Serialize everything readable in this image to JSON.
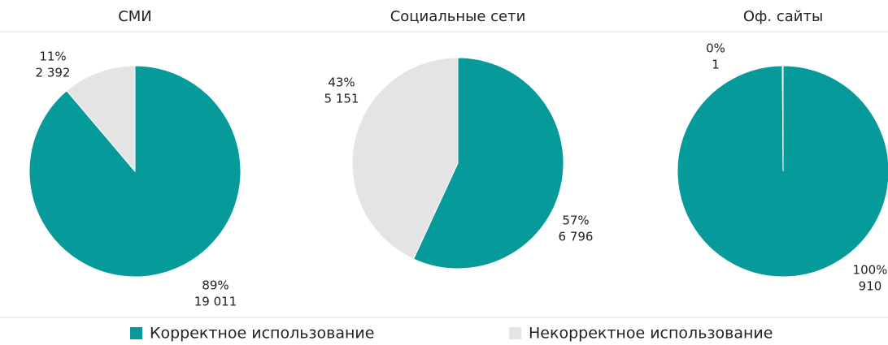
{
  "chart_data": [
    {
      "type": "pie",
      "title": "СМИ",
      "categories": [
        "Корректное использование",
        "Некорректное использование"
      ],
      "values": [
        19011,
        2392
      ],
      "value_labels": [
        "19 011",
        "2 392"
      ],
      "percents": [
        89,
        11
      ],
      "percent_labels": [
        "89%",
        "11%"
      ],
      "colors": [
        "#079a9a",
        "#e4e4e4"
      ]
    },
    {
      "type": "pie",
      "title": "Социальные сети",
      "categories": [
        "Корректное использование",
        "Некорректное использование"
      ],
      "values": [
        6796,
        5151
      ],
      "value_labels": [
        "6 796",
        "5 151"
      ],
      "percents": [
        57,
        43
      ],
      "percent_labels": [
        "57%",
        "43%"
      ],
      "colors": [
        "#079a9a",
        "#e4e4e4"
      ]
    },
    {
      "type": "pie",
      "title": "Оф. сайты",
      "categories": [
        "Корректное использование",
        "Некорректное использование"
      ],
      "values": [
        910,
        1
      ],
      "percents": [
        100,
        0
      ],
      "percent_labels": [
        "100%",
        "0%"
      ],
      "colors": [
        "#079a9a",
        "#e4e4e4"
      ]
    }
  ]
}
